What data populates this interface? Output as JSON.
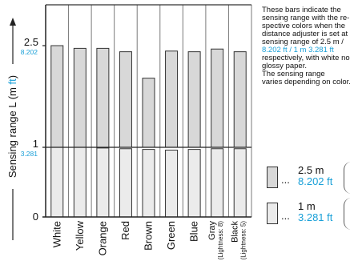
{
  "chart_data": {
    "type": "bar",
    "ylabel": "Sensing range L (m",
    "ylabel_unit": "ft",
    "ylabel_close": ")",
    "ylim": [
      0,
      2.9
    ],
    "y_ticks": [
      {
        "value": 0,
        "label_m": "0",
        "label_ft": ""
      },
      {
        "value": 1,
        "label_m": "1",
        "label_ft": "3.281"
      },
      {
        "value": 2.5,
        "label_m": "2.5",
        "label_ft": "8.202"
      }
    ],
    "categories": [
      [
        "White"
      ],
      [
        "Yellow"
      ],
      [
        "Orange"
      ],
      [
        "Red"
      ],
      [
        "Brown"
      ],
      [
        "Green"
      ],
      [
        "Blue"
      ],
      [
        "Gray",
        "(Lightness: 8)"
      ],
      [
        "Black",
        "(Lightness: 5)"
      ]
    ],
    "series": [
      {
        "name": "2.5 m / 8.202 ft",
        "color": "#d8d8d8",
        "values": [
          2.5,
          2.46,
          2.46,
          2.41,
          2.02,
          2.42,
          2.41,
          2.45,
          2.41
        ]
      },
      {
        "name": "1 m / 3.281 ft",
        "color": "#ebebeb",
        "values": [
          1.0,
          1.0,
          0.99,
          0.98,
          0.97,
          0.96,
          0.97,
          0.98,
          0.98
        ]
      }
    ],
    "grid": true
  },
  "note": {
    "lines": [
      "These bars indicate the",
      "sensing range with the re-",
      "spective colors when the",
      "distance adjuster is set at a",
      "sensing range of 2.5 m /",
      "8.202 ft / 1 m 3.281 ft",
      "respectively, with white non-",
      "glossy paper.",
      "The sensing range",
      "varies depending on color."
    ]
  },
  "legend": [
    {
      "dots": "...",
      "m": "2.5 m",
      "ft": "8.202 ft",
      "color": "#d8d8d8"
    },
    {
      "dots": "...",
      "m": "1 m",
      "ft": "3.281 ft",
      "color": "#ebebeb"
    }
  ]
}
